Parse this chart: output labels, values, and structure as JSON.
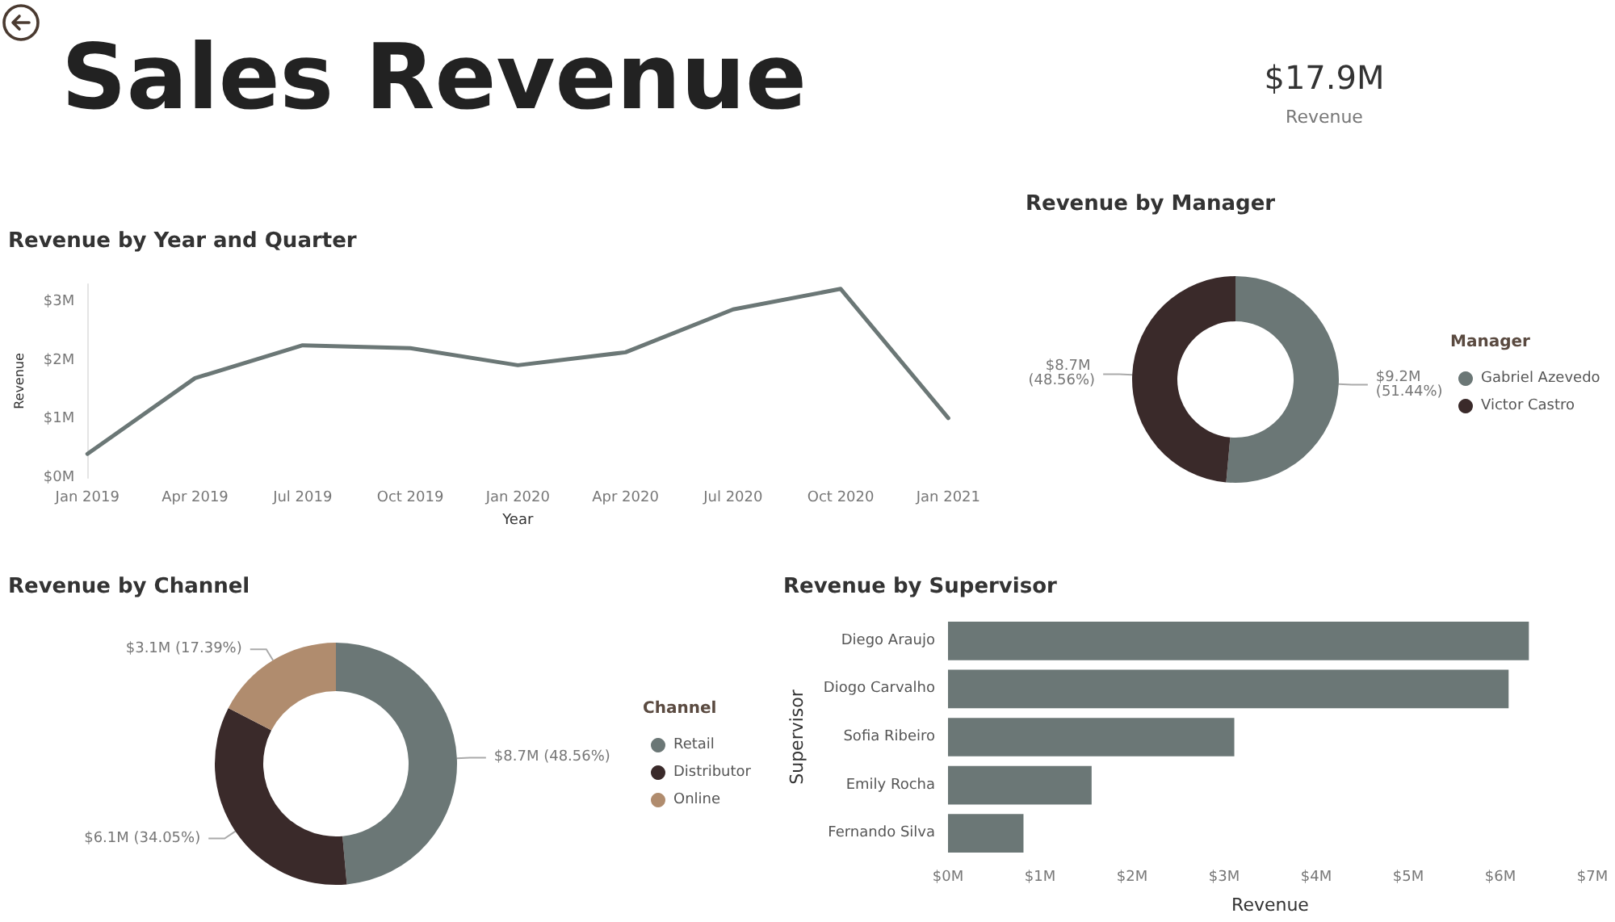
{
  "chart_data": [
    {
      "type": "other",
      "title": "Sales Revenue",
      "categories": [
        "Revenue"
      ],
      "value_labels": [
        "$17.9M"
      ]
    },
    {
      "type": "line",
      "title": "Revenue by Year and Quarter",
      "xlabel": "Year",
      "ylabel": "Revenue",
      "categories": [
        "Jan 2019",
        "Apr 2019",
        "Jul 2019",
        "Oct 2019",
        "Jan 2020",
        "Apr 2020",
        "Jul 2020",
        "Oct 2020",
        "Jan 2021"
      ],
      "series": [
        {
          "color": "#6b7776",
          "values": [
            0.41,
            1.7,
            2.26,
            2.21,
            1.92,
            2.14,
            2.87,
            3.22,
            1.02
          ]
        }
      ],
      "ylim": [
        0,
        3.3
      ],
      "yticks": [
        {
          "value": 0,
          "label": "$0M"
        },
        {
          "value": 1,
          "label": "$1M"
        },
        {
          "value": 2,
          "label": "$2M"
        },
        {
          "value": 3,
          "label": "$3M"
        }
      ],
      "marker": "none",
      "line_style": "solid"
    },
    {
      "type": "donut",
      "title": "Revenue by Manager",
      "legend_title": "Manager",
      "legend": "right",
      "categories": [
        "Gabriel Azevedo",
        "Victor Castro"
      ],
      "values": [
        51.44,
        48.56
      ],
      "colors": [
        "#6b7776",
        "#3a2a2a"
      ],
      "value_labels": [
        "$9.2M (51.44%)",
        "$8.7M (48.56%)"
      ]
    },
    {
      "type": "donut",
      "title": "Revenue by Channel",
      "legend_title": "Channel",
      "legend": "right",
      "categories": [
        "Retail",
        "Distributor",
        "Online"
      ],
      "values": [
        48.56,
        34.05,
        17.39
      ],
      "colors": [
        "#6b7776",
        "#3a2a2a",
        "#b08c6e"
      ],
      "value_labels": [
        "$8.7M (48.56%)",
        "$6.1M (34.05%)",
        "$3.1M (17.39%)"
      ]
    },
    {
      "type": "bar",
      "orientation": "horizontal",
      "title": "Revenue by Supervisor",
      "xlabel": "Revenue",
      "ylabel": "Supervisor",
      "categories": [
        "Diego Araujo",
        "Diogo Carvalho",
        "Sofia Ribeiro",
        "Emily Rocha",
        "Fernando Silva"
      ],
      "series": [
        {
          "color": "#6b7776",
          "values": [
            6.31,
            6.09,
            3.11,
            1.56,
            0.82
          ]
        }
      ],
      "xlim": [
        0,
        7
      ],
      "xticks": [
        {
          "value": 0,
          "label": "$0M"
        },
        {
          "value": 1,
          "label": "$1M"
        },
        {
          "value": 2,
          "label": "$2M"
        },
        {
          "value": 3,
          "label": "$3M"
        },
        {
          "value": 4,
          "label": "$4M"
        },
        {
          "value": 5,
          "label": "$5M"
        },
        {
          "value": 6,
          "label": "$6M"
        },
        {
          "value": 7,
          "label": "$7M"
        }
      ]
    }
  ]
}
